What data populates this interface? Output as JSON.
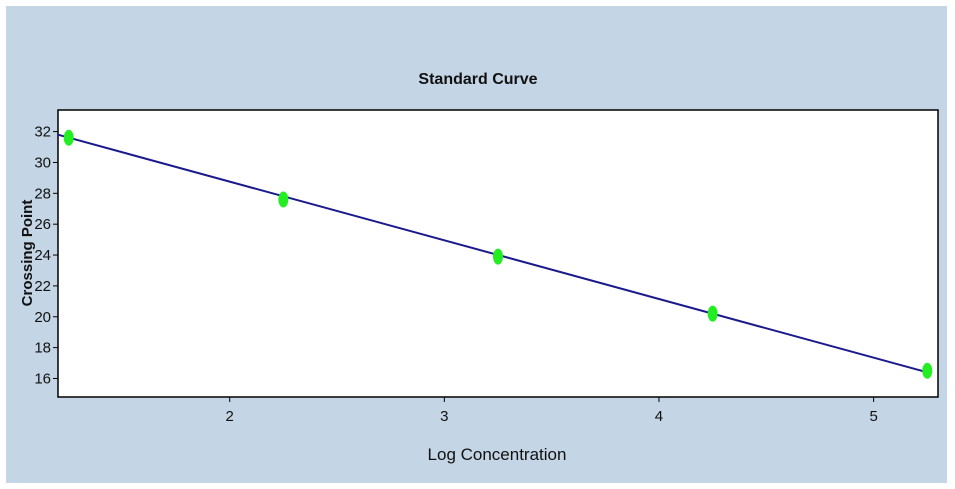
{
  "chart_data": {
    "type": "scatter",
    "title": "Standard Curve",
    "xlabel": "Log Concentration",
    "ylabel": "Crossing Point",
    "xlim": [
      1.2,
      5.3
    ],
    "ylim": [
      14.8,
      33.4
    ],
    "x_ticks": [
      2,
      3,
      4,
      5
    ],
    "y_ticks": [
      16,
      18,
      20,
      22,
      24,
      26,
      28,
      30,
      32
    ],
    "grid": false,
    "series": [
      {
        "points": [
          {
            "x": 1.25,
            "y": 31.6
          },
          {
            "x": 2.25,
            "y": 27.6
          },
          {
            "x": 3.25,
            "y": 23.9
          },
          {
            "x": 4.25,
            "y": 20.2
          },
          {
            "x": 5.25,
            "y": 16.5
          }
        ]
      }
    ],
    "fit_line": {
      "x": [
        1.2,
        5.25
      ],
      "y": [
        31.8,
        16.4
      ]
    },
    "colors": {
      "background": "#c4d5e6",
      "plot_area": "#ffffff",
      "points": "#22ee22",
      "line": "#1a1a8c"
    }
  }
}
